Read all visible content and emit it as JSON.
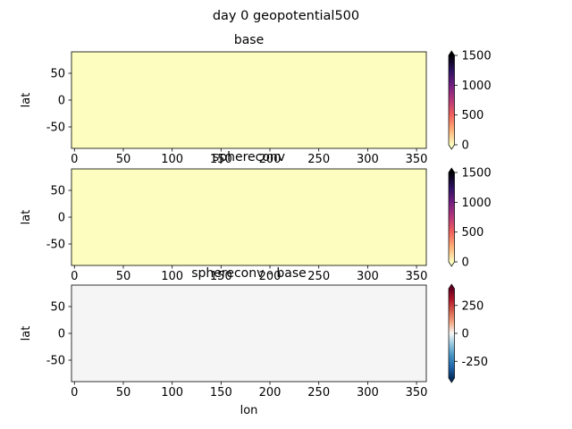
{
  "suptitle": "day 0 geopotential500",
  "chart_data": [
    {
      "type": "heatmap",
      "title": "base",
      "xlabel": "",
      "ylabel": "lat",
      "xlim": [
        -3,
        360
      ],
      "ylim": [
        -90,
        90
      ],
      "xticks": [
        0,
        50,
        100,
        150,
        200,
        250,
        300,
        350
      ],
      "yticks": [
        50,
        0,
        -50
      ],
      "field": "uniform",
      "field_value": 0,
      "fill_color": "#fcfdbf",
      "colorbar": {
        "cmap": "magma_r",
        "vmin": 0,
        "vmax": 1500,
        "ticks": [
          0,
          500,
          1000,
          1500
        ],
        "extend": "both",
        "colors": [
          "#fcfdbf",
          "#feb078",
          "#f1605d",
          "#b73779",
          "#721f81",
          "#2c115f",
          "#000004"
        ]
      }
    },
    {
      "type": "heatmap",
      "title": "sphereconv",
      "xlabel": "",
      "ylabel": "lat",
      "xlim": [
        -3,
        360
      ],
      "ylim": [
        -90,
        90
      ],
      "xticks": [
        0,
        50,
        100,
        150,
        200,
        250,
        300,
        350
      ],
      "yticks": [
        50,
        0,
        -50
      ],
      "field": "uniform",
      "field_value": 0,
      "fill_color": "#fcfdbf",
      "colorbar": {
        "cmap": "magma_r",
        "vmin": 0,
        "vmax": 1500,
        "ticks": [
          0,
          500,
          1000,
          1500
        ],
        "extend": "both",
        "colors": [
          "#fcfdbf",
          "#feb078",
          "#f1605d",
          "#b73779",
          "#721f81",
          "#2c115f",
          "#000004"
        ]
      }
    },
    {
      "type": "heatmap",
      "title": "sphereconv - base",
      "xlabel": "lon",
      "ylabel": "lat",
      "xlim": [
        -3,
        360
      ],
      "ylim": [
        -90,
        90
      ],
      "xticks": [
        0,
        50,
        100,
        150,
        200,
        250,
        300,
        350
      ],
      "yticks": [
        50,
        0,
        -50
      ],
      "field": "uniform",
      "field_value": 0,
      "fill_color": "#f5f5f5",
      "colorbar": {
        "cmap": "RdBu_r",
        "vmin": -400,
        "vmax": 400,
        "ticks": [
          250,
          0,
          -250
        ],
        "extend": "both",
        "colors": [
          "#053061",
          "#2166ac",
          "#4393c3",
          "#92c5de",
          "#f7f7f7",
          "#f4a582",
          "#d6604d",
          "#b2182b",
          "#67001f"
        ]
      }
    }
  ]
}
